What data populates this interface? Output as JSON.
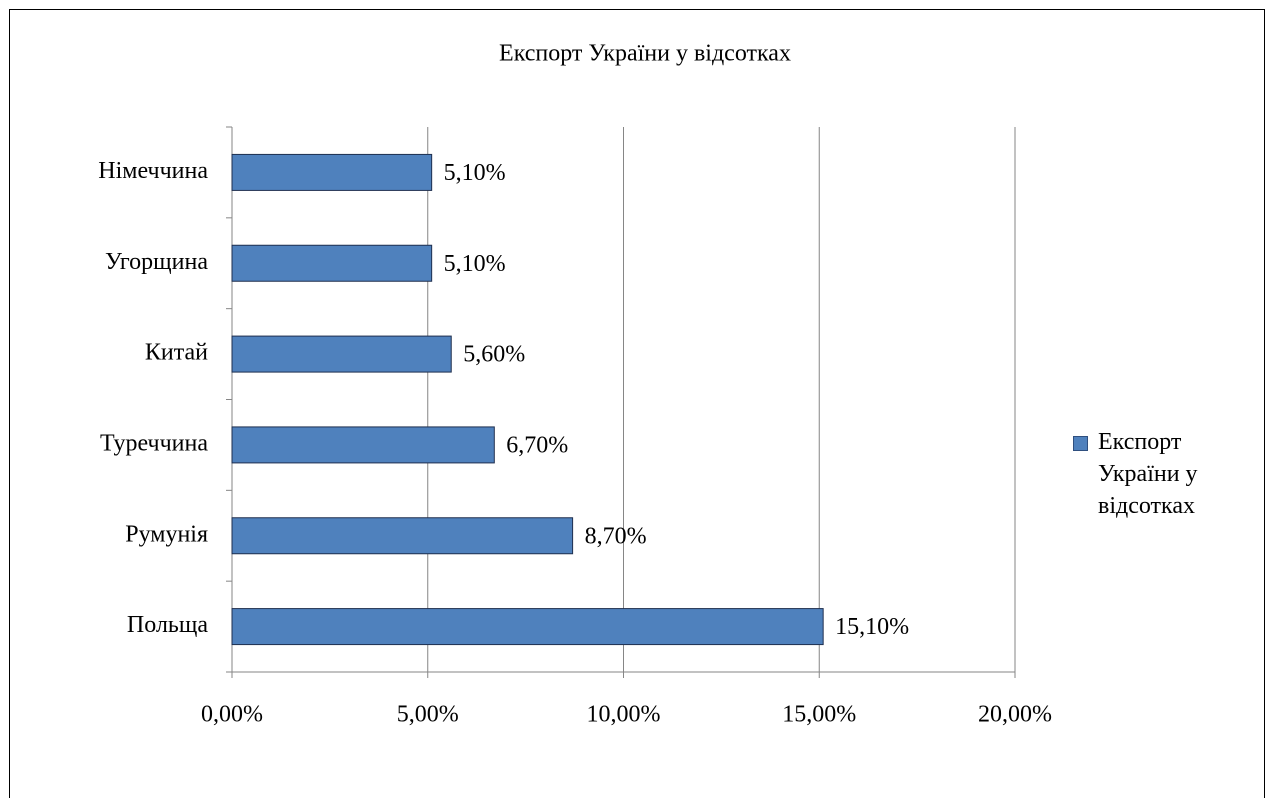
{
  "chart_data": {
    "type": "bar",
    "orientation": "horizontal",
    "title": "Експорт України у відсотках",
    "categories": [
      "Польща",
      "Румунія",
      "Туреччина",
      "Китай",
      "Угорщина",
      "Німеччина"
    ],
    "series": [
      {
        "name": "Експорт України у відсотках",
        "color": "#4f81bd",
        "values": [
          15.1,
          8.7,
          6.7,
          5.6,
          5.1,
          5.1
        ],
        "value_labels": [
          "15,10%",
          "8,70%",
          "6,70%",
          "5,60%",
          "5,10%",
          "5,10%"
        ]
      }
    ],
    "xlim": [
      0,
      20
    ],
    "xticks": [
      {
        "value": 0,
        "label": "0,00%"
      },
      {
        "value": 5,
        "label": "5,00%"
      },
      {
        "value": 10,
        "label": "10,00%"
      },
      {
        "value": 15,
        "label": "15,00%"
      },
      {
        "value": 20,
        "label": "20,00%"
      }
    ],
    "grid": true,
    "legend": "right"
  }
}
